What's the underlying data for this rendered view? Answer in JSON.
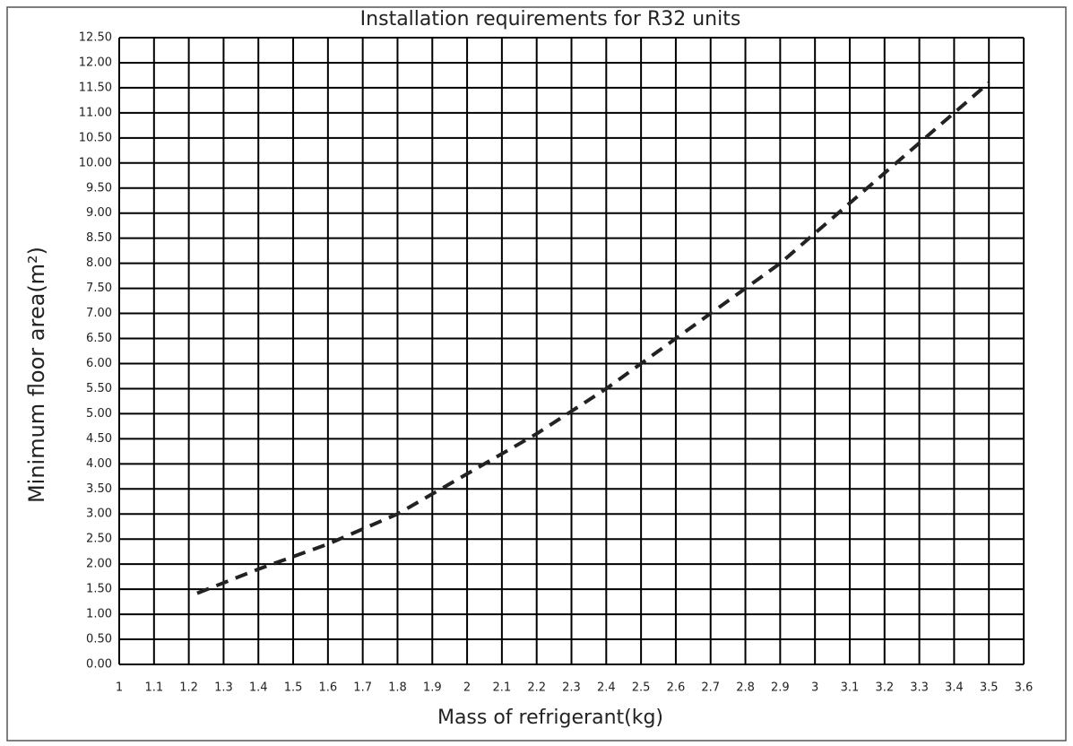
{
  "chart_data": {
    "type": "line",
    "title": "Installation requirements for R32 units",
    "x_label": "Mass of refrigerant(kg)",
    "y_label": "Minimum floor area(m²)",
    "x": [
      1.224,
      1.4,
      1.6,
      1.8,
      2.0,
      2.2,
      2.4,
      2.5,
      2.6,
      2.8,
      2.9,
      3.0,
      3.2,
      3.4,
      3.5
    ],
    "values": [
      1.42,
      1.9,
      2.4,
      3.0,
      3.8,
      4.6,
      5.5,
      6.0,
      6.5,
      7.5,
      8.0,
      8.6,
      9.8,
      11.0,
      11.6
    ],
    "color": "#222222",
    "line_style": "dashed",
    "grid": true,
    "xlim": [
      1,
      3.6
    ],
    "xticks": [
      1,
      1.1,
      1.2,
      1.3,
      1.4,
      1.5,
      1.6,
      1.7,
      1.8,
      1.9,
      2,
      2.1,
      2.2,
      2.3,
      2.4,
      2.5,
      2.6,
      2.7,
      2.8,
      2.9,
      3,
      3.1,
      3.2,
      3.3,
      3.4,
      3.5,
      3.6
    ],
    "ylim": [
      0,
      12.5
    ],
    "yticks": [
      {
        "value": 0,
        "label": "0.00"
      },
      {
        "value": 0.5,
        "label": "0.50"
      },
      {
        "value": 1,
        "label": "1.00"
      },
      {
        "value": 1.5,
        "label": "1.50"
      },
      {
        "value": 2,
        "label": "2.00"
      },
      {
        "value": 2.5,
        "label": "2.50"
      },
      {
        "value": 3,
        "label": "3.00"
      },
      {
        "value": 3.5,
        "label": "3.50"
      },
      {
        "value": 4,
        "label": "4.00"
      },
      {
        "value": 4.5,
        "label": "4.50"
      },
      {
        "value": 5,
        "label": "5.00"
      },
      {
        "value": 5.5,
        "label": "5.50"
      },
      {
        "value": 6,
        "label": "6.00"
      },
      {
        "value": 6.5,
        "label": "6.50"
      },
      {
        "value": 7,
        "label": "7.00"
      },
      {
        "value": 7.5,
        "label": "7.50"
      },
      {
        "value": 8,
        "label": "8.00"
      },
      {
        "value": 8.5,
        "label": "8.50"
      },
      {
        "value": 9,
        "label": "9.00"
      },
      {
        "value": 9.5,
        "label": "9.50"
      },
      {
        "value": 10,
        "label": "10.00"
      },
      {
        "value": 10.5,
        "label": "10.50"
      },
      {
        "value": 11,
        "label": "11.00"
      },
      {
        "value": 11.5,
        "label": "11.50"
      },
      {
        "value": 12,
        "label": "12.00"
      },
      {
        "value": 12.5,
        "label": "12.50"
      }
    ]
  }
}
